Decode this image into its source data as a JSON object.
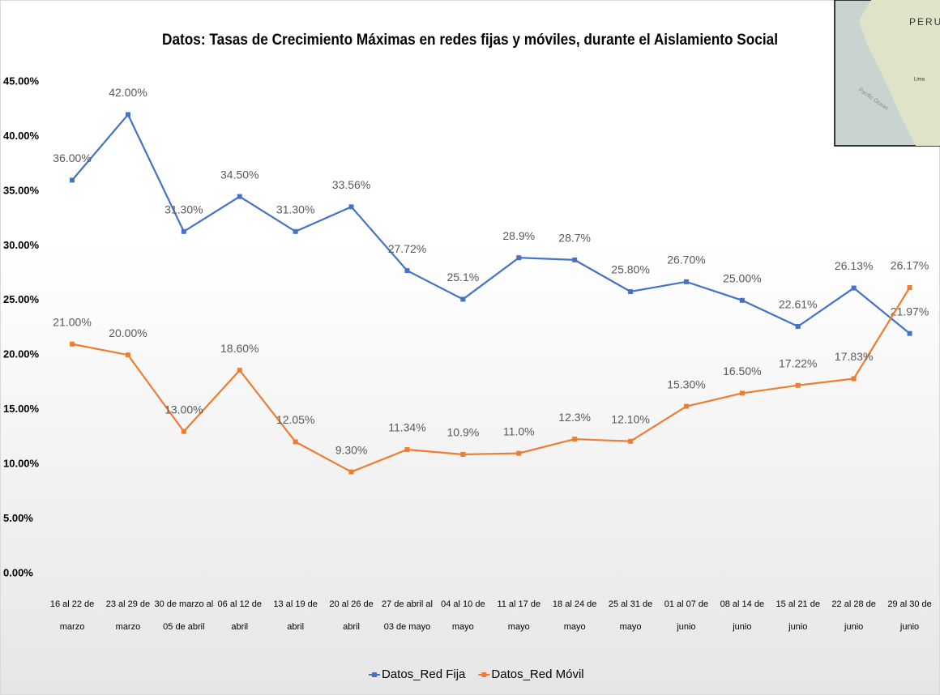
{
  "chart_data": {
    "type": "line",
    "title": "Datos: Tasas de Crecimiento Máximas en redes fijas y móviles, durante el Aislamiento Social",
    "categories": [
      "16 al 22 de marzo",
      "23 al 29 de marzo",
      "30 de marzo al 05 de abril",
      "06 al 12 de abril",
      "13 al 19 de abril",
      "20 al 26 de abril",
      "27 de abril al 03 de mayo",
      "04 al 10 de mayo",
      "11 al 17 de mayo",
      "18 al 24 de mayo",
      "25 al 31 de mayo",
      "01 al 07 de junio",
      "08 al 14 de junio",
      "15 al 21 de junio",
      "22 al 28 de junio",
      "29 al 30 de junio"
    ],
    "series": [
      {
        "name": "Datos_Red Fija",
        "color": "#4472c4",
        "values": [
          36,
          42,
          31.3,
          34.5,
          31.3,
          33.56,
          27.72,
          25.1,
          28.9,
          28.7,
          25.8,
          26.7,
          25,
          22.61,
          26.13,
          21.97
        ],
        "value_labels": [
          "36.00%",
          "42.00%",
          "31.30%",
          "34.50%",
          "31.30%",
          "33.56%",
          "27.72%",
          "25.1%",
          "28.9%",
          "28.7%",
          "25.80%",
          "26.70%",
          "25.00%",
          "22.61%",
          "26.13%",
          "21.97%"
        ]
      },
      {
        "name": "Datos_Red Móvil",
        "color": "#ed7d31",
        "values": [
          21,
          20,
          13,
          18.6,
          12.05,
          9.3,
          11.34,
          10.9,
          11.0,
          12.3,
          12.1,
          15.3,
          16.5,
          17.22,
          17.83,
          26.17
        ],
        "value_labels": [
          "21.00%",
          "20.00%",
          "13.00%",
          "18.60%",
          "12.05%",
          "9.30%",
          "11.34%",
          "10.9%",
          "11.0%",
          "12.3%",
          "12.10%",
          "15.30%",
          "16.50%",
          "17.22%",
          "17.83%",
          "26.17%"
        ]
      }
    ],
    "ylim": [
      0,
      45
    ],
    "yticks": [
      {
        "value": 0,
        "label": "0.00%"
      },
      {
        "value": 5,
        "label": "5.00%"
      },
      {
        "value": 10,
        "label": "10.00%"
      },
      {
        "value": 15,
        "label": "15.00%"
      },
      {
        "value": 20,
        "label": "20.00%"
      },
      {
        "value": 25,
        "label": "25.00%"
      },
      {
        "value": 30,
        "label": "30.00%"
      },
      {
        "value": 35,
        "label": "35.00%"
      },
      {
        "value": 40,
        "label": "40.00%"
      },
      {
        "value": 45,
        "label": "45.00%"
      }
    ],
    "legend": "bottom"
  },
  "map": {
    "labels": [
      "PERU",
      "Lima",
      "Pacific Ocean"
    ]
  }
}
